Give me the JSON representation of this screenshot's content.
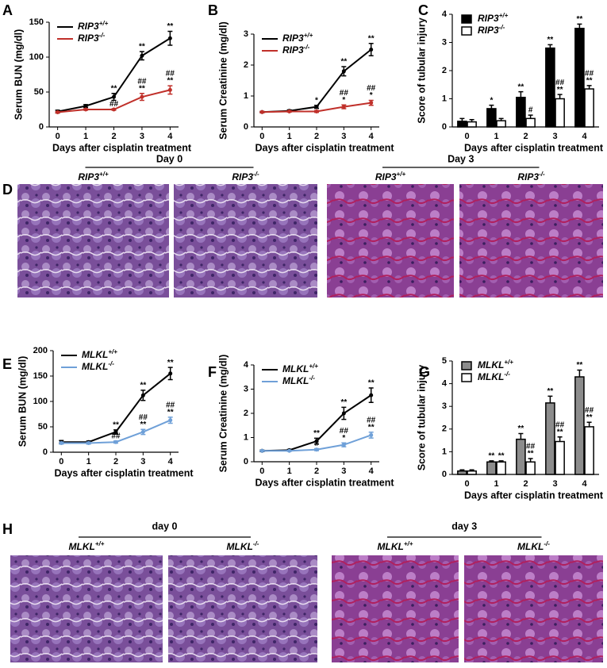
{
  "chart_data": [
    {
      "type": "line",
      "panel": "A",
      "ylabel": "Serum BUN (mg/dl)",
      "xlabel": "Days after cisplatin treatment",
      "x": [
        0,
        1,
        2,
        3,
        4
      ],
      "xlim": [
        -0.3,
        4.3
      ],
      "xticks": [
        0,
        1,
        2,
        3,
        4
      ],
      "ylim": [
        0,
        150
      ],
      "yticks": [
        0,
        50,
        100,
        150
      ],
      "legend": "upper left",
      "series": [
        {
          "name": "RIP3+/+",
          "color": "#000000",
          "values": [
            22,
            30,
            43,
            102,
            127
          ],
          "errors": [
            2,
            2,
            5,
            6,
            10
          ],
          "annotations": [
            [],
            [],
            [
              "**"
            ],
            [
              "**"
            ],
            [
              "**"
            ]
          ]
        },
        {
          "name": "RIP3-/-",
          "color": "#c0302a",
          "values": [
            21,
            25,
            25,
            43,
            53
          ],
          "errors": [
            1,
            1,
            1,
            5,
            6
          ],
          "annotations": [
            [],
            [],
            [
              "##"
            ],
            [
              "##",
              "**"
            ],
            [
              "##",
              "**"
            ]
          ]
        }
      ]
    },
    {
      "type": "line",
      "panel": "B",
      "ylabel": "Serum Creatinine (mg/dl)",
      "xlabel": "Days after cisplatin treatment",
      "x": [
        0,
        1,
        2,
        3,
        4
      ],
      "xlim": [
        -0.3,
        4.3
      ],
      "xticks": [
        0,
        1,
        2,
        3,
        4
      ],
      "ylim": [
        0,
        3
      ],
      "yticks": [
        0,
        1,
        2,
        3
      ],
      "legend": "upper left",
      "series": [
        {
          "name": "RIP3+/+",
          "color": "#000000",
          "values": [
            0.48,
            0.52,
            0.65,
            1.8,
            2.5
          ],
          "errors": [
            0.02,
            0.03,
            0.05,
            0.15,
            0.2
          ],
          "annotations": [
            [],
            [],
            [
              "*"
            ],
            [
              "**"
            ],
            [
              "**"
            ]
          ]
        },
        {
          "name": "RIP3-/-",
          "color": "#c0302a",
          "values": [
            0.48,
            0.5,
            0.5,
            0.65,
            0.78
          ],
          "errors": [
            0.02,
            0.02,
            0.03,
            0.06,
            0.08
          ],
          "annotations": [
            [],
            [],
            [],
            [
              "##",
              "*"
            ],
            [
              "##",
              "*"
            ]
          ]
        }
      ]
    },
    {
      "type": "bar",
      "panel": "C",
      "ylabel": "Score of tubular injury",
      "xlabel": "Days after cisplatin treatment",
      "categories": [
        "0",
        "1",
        "2",
        "3",
        "4"
      ],
      "ylim": [
        0,
        4
      ],
      "yticks": [
        0,
        1,
        2,
        3,
        4
      ],
      "legend": "upper left",
      "series": [
        {
          "name": "RIP3+/+",
          "color": "#000000",
          "values": [
            0.2,
            0.65,
            1.05,
            2.8,
            3.5
          ],
          "errors": [
            0.1,
            0.12,
            0.2,
            0.12,
            0.15
          ],
          "annotations": [
            [],
            [
              "*"
            ],
            [
              "**"
            ],
            [
              "**"
            ],
            [
              "**"
            ]
          ]
        },
        {
          "name": "RIP3-/-",
          "color": "#ffffff",
          "values": [
            0.18,
            0.22,
            0.3,
            1.0,
            1.35
          ],
          "errors": [
            0.08,
            0.08,
            0.12,
            0.15,
            0.12
          ],
          "annotations": [
            [],
            [],
            [
              "#"
            ],
            [
              "##",
              "**"
            ],
            [
              "##",
              "**"
            ]
          ]
        }
      ]
    },
    {
      "type": "line",
      "panel": "E",
      "ylabel": "Serum BUN (mg/dl)",
      "xlabel": "Days after cisplatin treatment",
      "x": [
        0,
        1,
        2,
        3,
        4
      ],
      "xlim": [
        -0.3,
        4.3
      ],
      "xticks": [
        0,
        1,
        2,
        3,
        4
      ],
      "ylim": [
        0,
        200
      ],
      "yticks": [
        0,
        50,
        100,
        150,
        200
      ],
      "legend": "upper left",
      "series": [
        {
          "name": "MLKL+/+",
          "color": "#000000",
          "values": [
            20,
            20,
            40,
            112,
            155
          ],
          "errors": [
            3,
            2,
            4,
            10,
            12
          ],
          "annotations": [
            [],
            [],
            [
              "**"
            ],
            [
              "**"
            ],
            [
              "**"
            ]
          ]
        },
        {
          "name": "MLKL-/-",
          "color": "#6fa0d8",
          "values": [
            18,
            18,
            20,
            40,
            63
          ],
          "errors": [
            2,
            2,
            2,
            5,
            6
          ],
          "annotations": [
            [],
            [],
            [
              "##"
            ],
            [
              "##",
              "**"
            ],
            [
              "##",
              "**"
            ]
          ]
        }
      ]
    },
    {
      "type": "line",
      "panel": "F",
      "ylabel": "Serum Creatinine (mg/dl)",
      "xlabel": "Days after cisplatin treatment",
      "x": [
        0,
        1,
        2,
        3,
        4
      ],
      "xlim": [
        -0.3,
        4.3
      ],
      "xticks": [
        0,
        1,
        2,
        3,
        4
      ],
      "ylim": [
        0,
        4
      ],
      "yticks": [
        0,
        1,
        2,
        3,
        4
      ],
      "legend": "upper left",
      "series": [
        {
          "name": "MLKL+/+",
          "color": "#000000",
          "values": [
            0.45,
            0.48,
            0.85,
            2.0,
            2.75
          ],
          "errors": [
            0.03,
            0.03,
            0.12,
            0.25,
            0.3
          ],
          "annotations": [
            [],
            [],
            [
              "**"
            ],
            [
              "**"
            ],
            [
              "**"
            ]
          ]
        },
        {
          "name": "MLKL-/-",
          "color": "#6fa0d8",
          "values": [
            0.45,
            0.45,
            0.5,
            0.7,
            1.1
          ],
          "errors": [
            0.02,
            0.02,
            0.04,
            0.08,
            0.12
          ],
          "annotations": [
            [],
            [],
            [
              "#"
            ],
            [
              "##",
              "*"
            ],
            [
              "##",
              "**"
            ]
          ]
        }
      ]
    },
    {
      "type": "bar",
      "panel": "G",
      "ylabel": "Score of tubular injury",
      "xlabel": "Days after cisplatin treatment",
      "categories": [
        "0",
        "1",
        "2",
        "3",
        "4"
      ],
      "ylim": [
        0,
        5
      ],
      "yticks": [
        0,
        1,
        2,
        3,
        4,
        5
      ],
      "legend": "upper left",
      "series": [
        {
          "name": "MLKL+/+",
          "color": "#8c8c8c",
          "values": [
            0.15,
            0.55,
            1.55,
            3.15,
            4.3
          ],
          "errors": [
            0.05,
            0.05,
            0.25,
            0.3,
            0.3
          ],
          "annotations": [
            [],
            [
              "**"
            ],
            [
              "**"
            ],
            [
              "**"
            ],
            [
              "**"
            ]
          ]
        },
        {
          "name": "MLKL-/-",
          "color": "#ffffff",
          "values": [
            0.15,
            0.55,
            0.55,
            1.45,
            2.1
          ],
          "errors": [
            0.05,
            0.05,
            0.15,
            0.2,
            0.2
          ],
          "annotations": [
            [],
            [
              "**"
            ],
            [
              "##",
              "**"
            ],
            [
              "##",
              "**"
            ],
            [
              "##",
              "**"
            ]
          ]
        }
      ]
    }
  ],
  "image_panels": [
    {
      "panel": "D",
      "groups": [
        {
          "label": "Day 0",
          "images": [
            "RIP3+/+",
            "RIP3-/-"
          ]
        },
        {
          "label": "Day 3",
          "images": [
            "RIP3+/+",
            "RIP3-/-"
          ]
        }
      ]
    },
    {
      "panel": "H",
      "groups": [
        {
          "label": "day 0",
          "images": [
            "MLKL+/+",
            "MLKL-/-"
          ]
        },
        {
          "label": "day 3",
          "images": [
            "MLKL+/+",
            "MLKL-/-"
          ]
        }
      ]
    }
  ]
}
